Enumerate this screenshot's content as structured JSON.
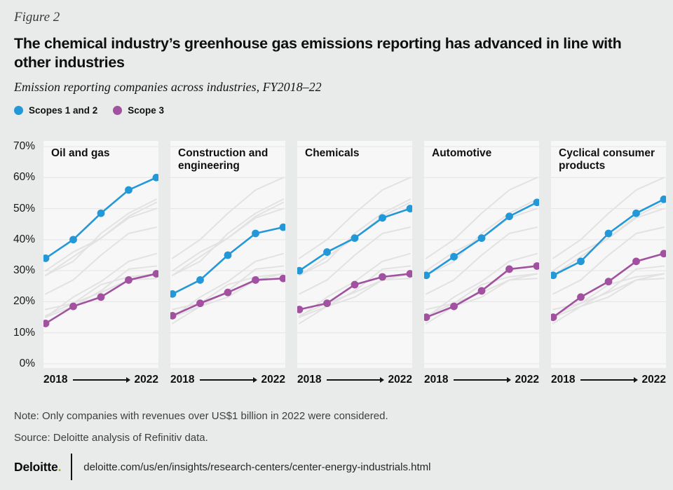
{
  "figure_label": "Figure 2",
  "title": "The chemical industry’s greenhouse gas emissions reporting has advanced in line with other industries",
  "subtitle": "Emission reporting companies across industries, FY2018–22",
  "legend": [
    {
      "label": "Scopes 1 and 2",
      "color": "#2398d8"
    },
    {
      "label": "Scope 3",
      "color": "#a1519f"
    }
  ],
  "note": "Note: Only companies with revenues over US$1 billion in 2022 were considered.",
  "source": "Source: Deloitte analysis of Refinitiv data.",
  "footer": {
    "logo": "Deloitte",
    "logo_dot": ".",
    "url": "deloitte.com/us/en/insights/research-centers/center-energy-industrials.html"
  },
  "chart_data": {
    "type": "line",
    "x": [
      2018,
      2019,
      2020,
      2021,
      2022
    ],
    "x_start_label": "2018",
    "x_end_label": "2022",
    "ylim": [
      0,
      70
    ],
    "yticks": [
      70,
      60,
      50,
      40,
      30,
      20,
      10,
      0
    ],
    "ytick_suffix": "%",
    "grid": true,
    "legend_position": "top-left",
    "panel_background": "#f7f7f7",
    "gridline_color": "#e4e4e4",
    "ghost_line_color": "#e2e2e2",
    "panels": [
      {
        "title": "Oil and gas",
        "series": [
          {
            "name": "Scopes 1 and 2",
            "values": [
              34,
              40,
              48.5,
              56,
              60
            ]
          },
          {
            "name": "Scope 3",
            "values": [
              13,
              18.5,
              21.5,
              27,
              29
            ]
          }
        ]
      },
      {
        "title": "Construction and engineering",
        "series": [
          {
            "name": "Scopes 1 and 2",
            "values": [
              22.5,
              27,
              35,
              42,
              44
            ]
          },
          {
            "name": "Scope 3",
            "values": [
              15.5,
              19.5,
              23,
              27,
              27.5
            ]
          }
        ]
      },
      {
        "title": "Chemicals",
        "series": [
          {
            "name": "Scopes 1 and 2",
            "values": [
              30,
              36,
              40.5,
              47,
              50
            ]
          },
          {
            "name": "Scope 3",
            "values": [
              17.5,
              19.5,
              25.5,
              28,
              29
            ]
          }
        ]
      },
      {
        "title": "Automotive",
        "series": [
          {
            "name": "Scopes 1 and 2",
            "values": [
              28.5,
              34.5,
              40.5,
              47.5,
              52
            ]
          },
          {
            "name": "Scope 3",
            "values": [
              15,
              18.5,
              23.5,
              30.5,
              31.5
            ]
          }
        ]
      },
      {
        "title": "Cyclical consumer products",
        "series": [
          {
            "name": "Scopes 1 and 2",
            "values": [
              28.5,
              33,
              42,
              48.5,
              53
            ]
          },
          {
            "name": "Scope 3",
            "values": [
              15,
              21.5,
              26.5,
              33,
              35.5
            ]
          }
        ]
      }
    ]
  }
}
